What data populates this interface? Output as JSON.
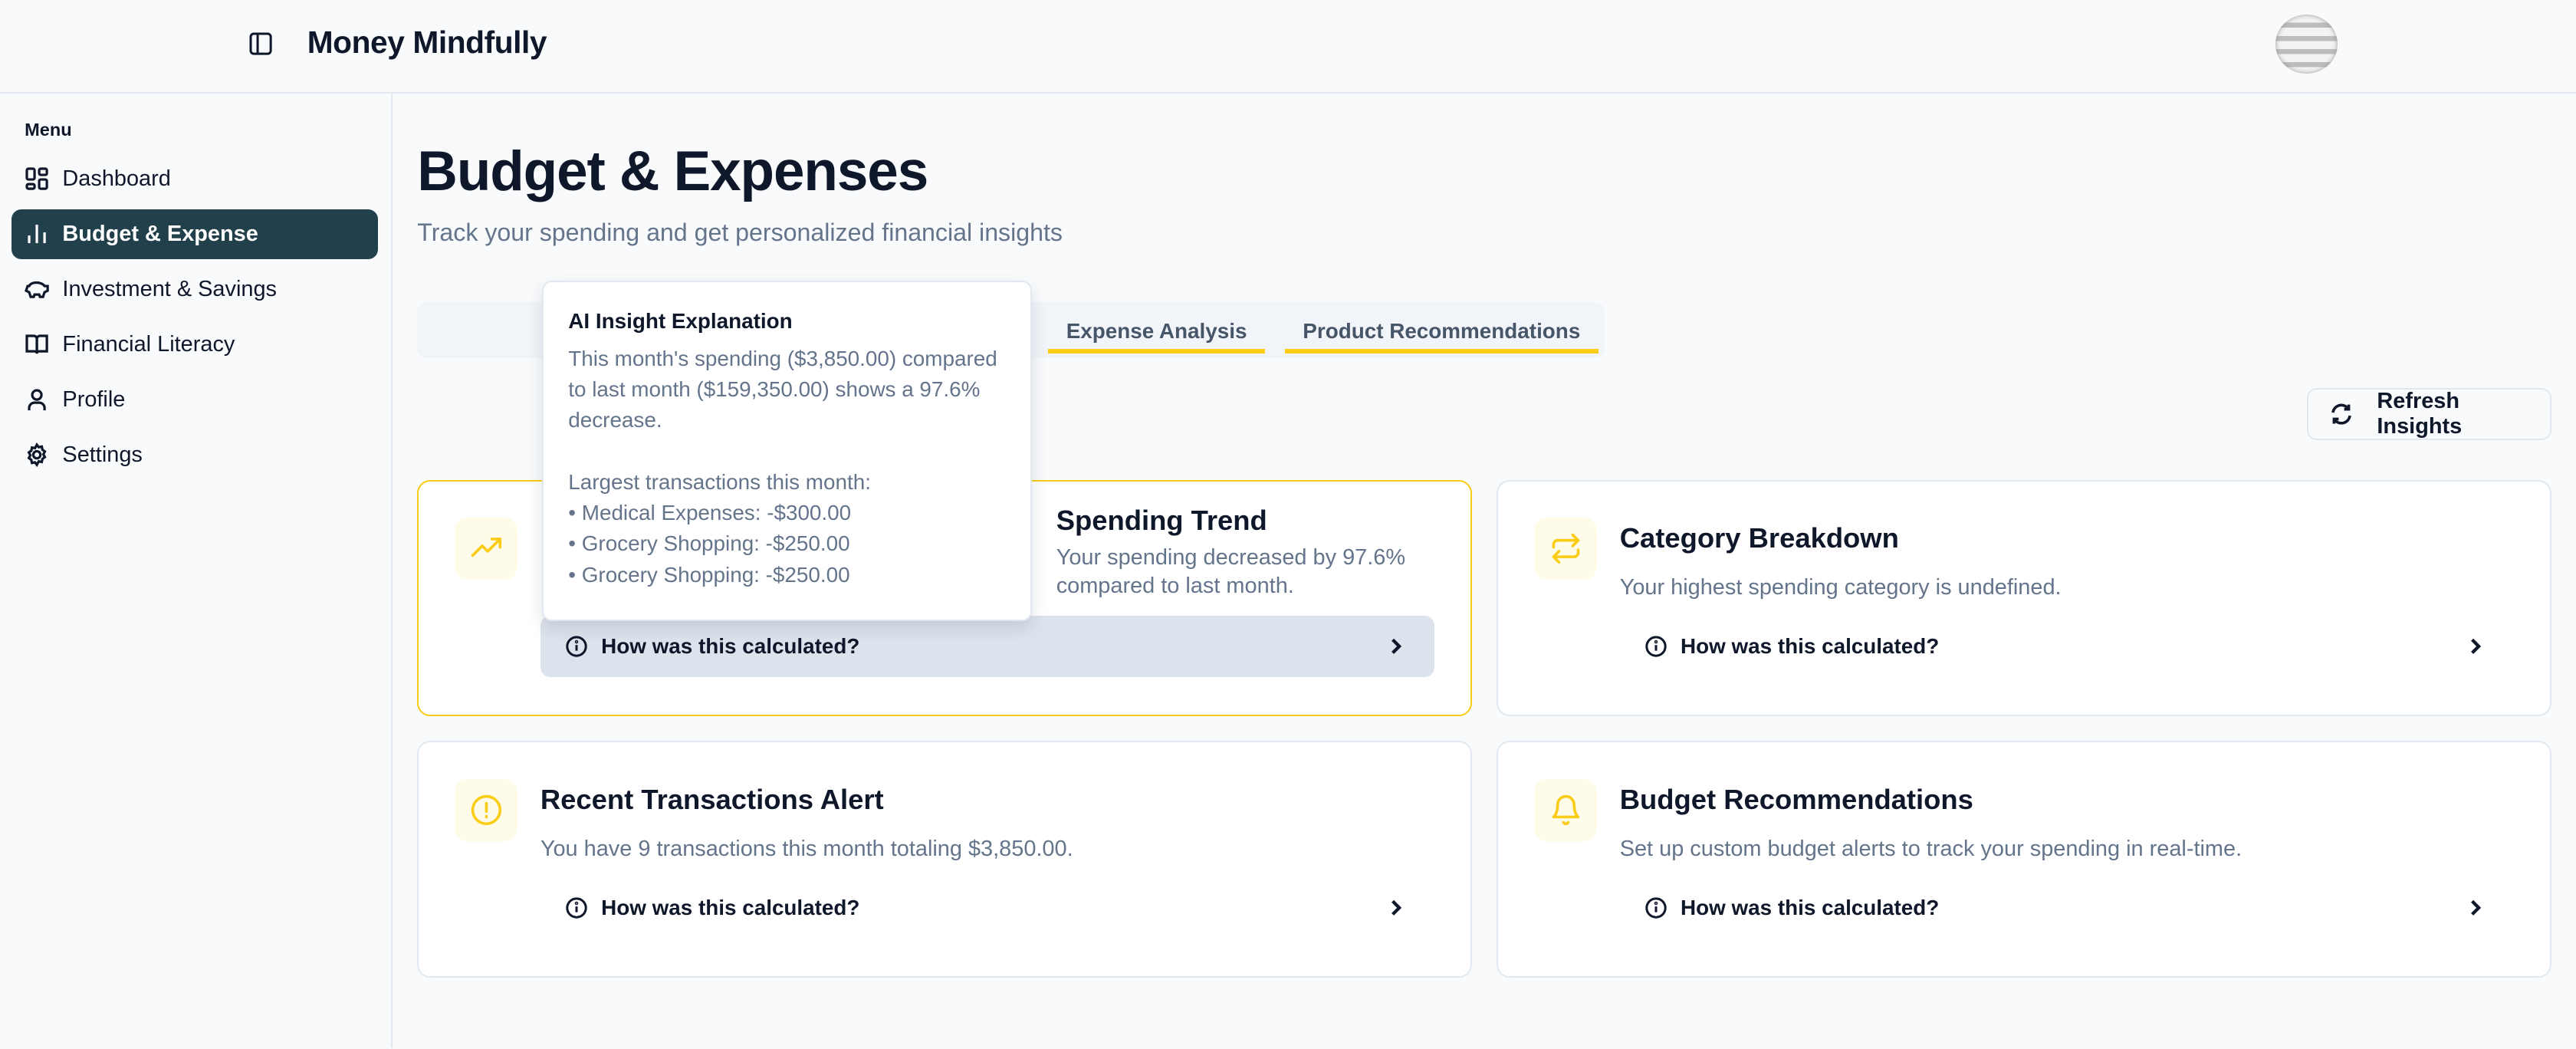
{
  "header": {
    "title": "Money Mindfully"
  },
  "sidebar": {
    "menu_label": "Menu",
    "items": [
      {
        "label": "Dashboard",
        "icon": "dashboard-icon"
      },
      {
        "label": "Budget & Expense",
        "icon": "bar-chart-icon",
        "active": true
      },
      {
        "label": "Investment & Savings",
        "icon": "piggy-bank-icon"
      },
      {
        "label": "Financial Literacy",
        "icon": "book-icon"
      },
      {
        "label": "Profile",
        "icon": "user-icon"
      },
      {
        "label": "Settings",
        "icon": "gear-icon"
      }
    ]
  },
  "main": {
    "title": "Budget & Expenses",
    "subtitle": "Track your spending and get personalized financial insights",
    "tabs": [
      {
        "label": "Expense Analysis"
      },
      {
        "label": "Product Recommendations"
      }
    ],
    "refresh_label": "Refresh Insights",
    "accent_color": "#facc15",
    "cards": [
      {
        "title": "Spending Trend",
        "description": "Your spending decreased by 97.6% compared to last month.",
        "calc_label": "How was this calculated?",
        "icon": "trending-up-icon"
      },
      {
        "title": "Category Breakdown",
        "description": "Your highest spending category is undefined.",
        "calc_label": "How was this calculated?",
        "icon": "repeat-icon"
      },
      {
        "title": "Recent Transactions Alert",
        "description": "You have 9 transactions this month totaling $3,850.00.",
        "calc_label": "How was this calculated?",
        "icon": "alert-circle-icon"
      },
      {
        "title": "Budget Recommendations",
        "description": "Set up custom budget alerts to track your spending in real-time.",
        "calc_label": "How was this calculated?",
        "icon": "bell-icon"
      }
    ]
  },
  "tooltip": {
    "title": "AI Insight Explanation",
    "lines": [
      "This month's spending ($3,850.00) compared to last month ($159,350.00) shows a 97.6% decrease.",
      "",
      "Largest transactions this month:",
      "• Medical Expenses: -$300.00",
      "• Grocery Shopping: -$250.00",
      "• Grocery Shopping: -$250.00"
    ]
  }
}
